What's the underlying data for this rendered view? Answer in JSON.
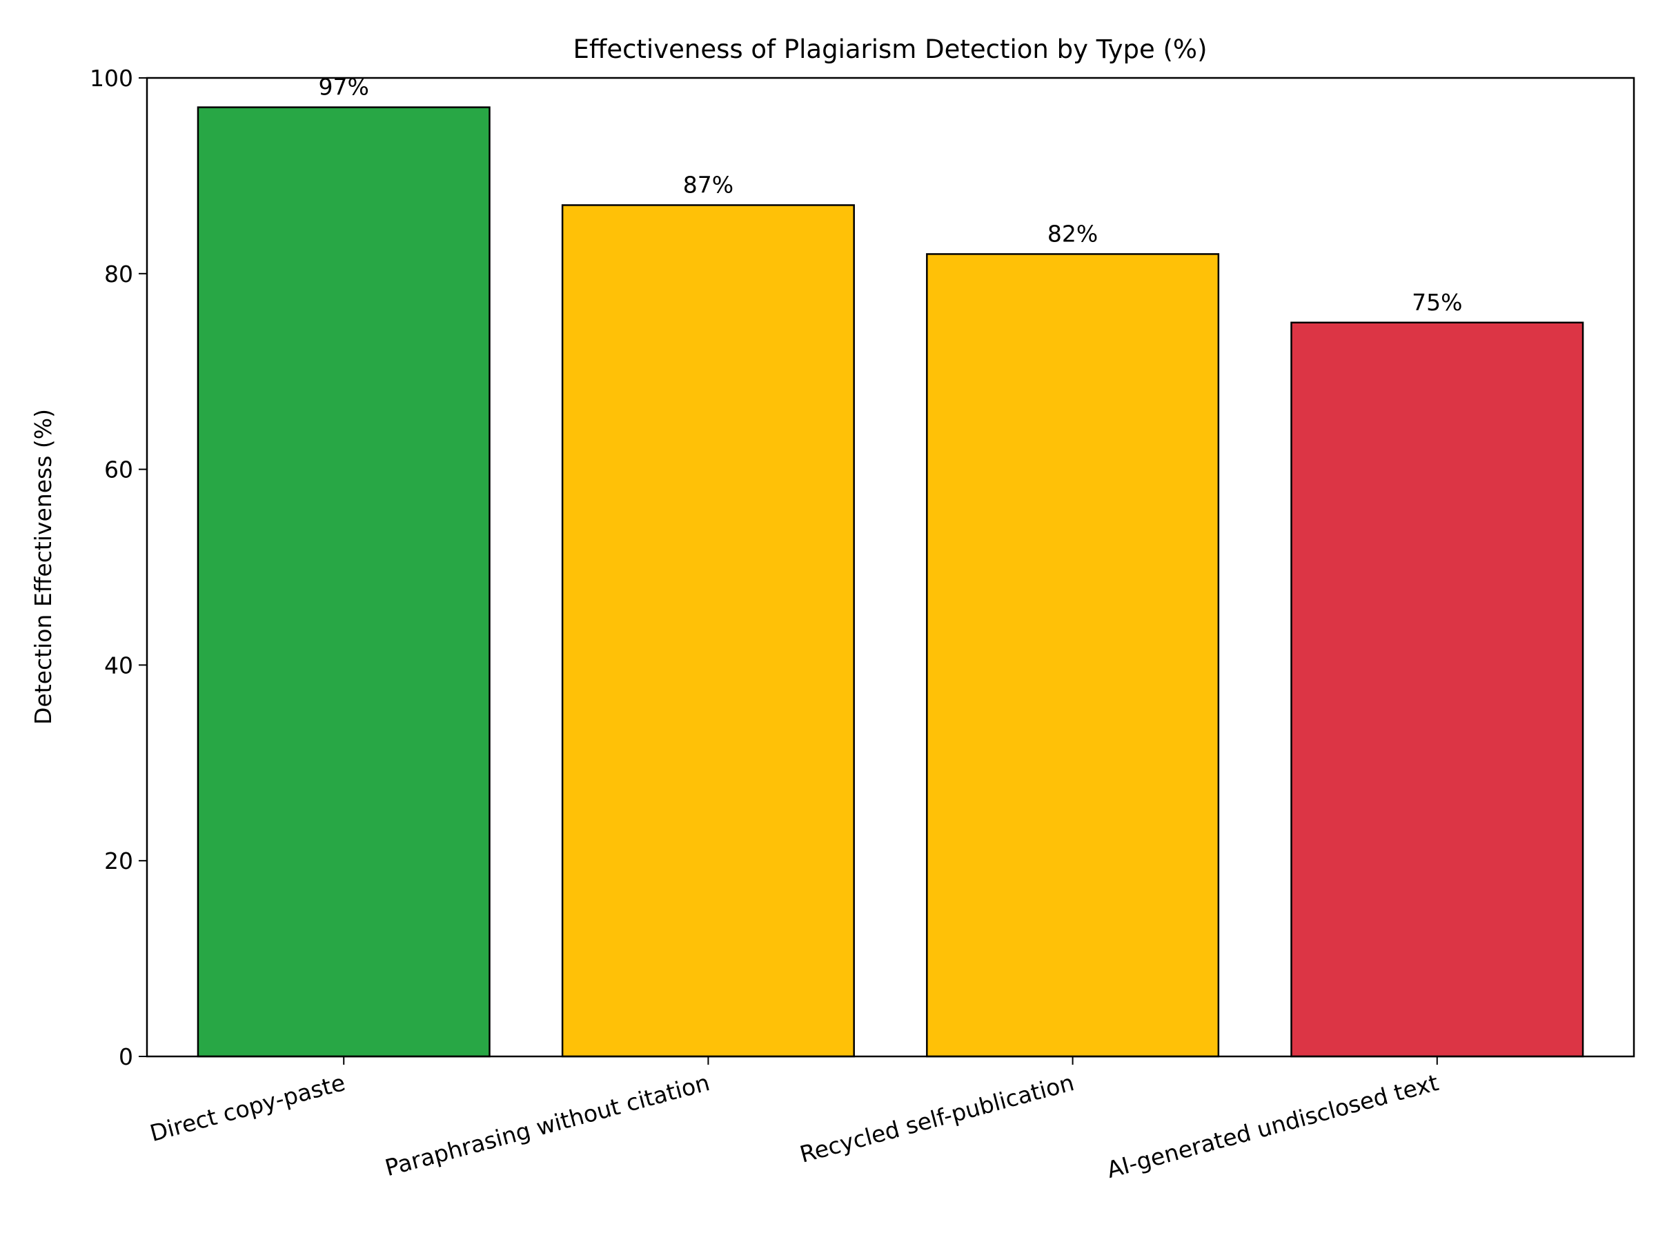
{
  "chart_data": {
    "type": "bar",
    "title": "Effectiveness of Plagiarism Detection by Type (%)",
    "xlabel": "",
    "ylabel": "Detection Effectiveness (%)",
    "categories": [
      "Direct copy-paste",
      "Paraphrasing without citation",
      "Recycled self-publication",
      "AI-generated undisclosed text"
    ],
    "values": [
      97,
      87,
      82,
      75
    ],
    "data_labels": [
      "97%",
      "87%",
      "82%",
      "75%"
    ],
    "colors": [
      "#28a745",
      "#ffc107",
      "#ffc107",
      "#dc3545"
    ],
    "edge_color": "#000000",
    "ylim": [
      0,
      100
    ],
    "yticks": [
      0,
      20,
      40,
      60,
      80,
      100
    ],
    "grid": false,
    "legend": "none"
  }
}
